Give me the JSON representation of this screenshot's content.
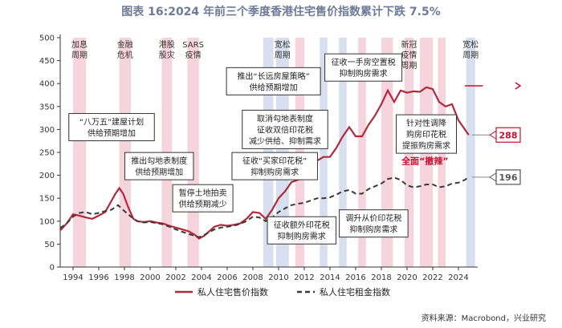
{
  "title": "图表 16:2024 年前三个季度香港住宅售价指数累计下跌 7.5%",
  "source": "资料来源：Macrobond，兴业研究",
  "chart_data": {
    "type": "line",
    "xlim": [
      1993,
      2025.5
    ],
    "ylim": [
      0,
      500
    ],
    "yticks": [
      0,
      50,
      100,
      150,
      200,
      250,
      300,
      350,
      400,
      450,
      500
    ],
    "xticks": [
      "1994",
      "1996",
      "1998",
      "2000",
      "2002",
      "2004",
      "2006",
      "2008",
      "2010",
      "2012",
      "2014",
      "2016",
      "2018",
      "2020",
      "2022",
      "2024"
    ],
    "grid": false,
    "legend_position": "bottom",
    "colors": {
      "price": "#b5283a",
      "rent": "#3a3a3a",
      "pink": "#f6d4dd",
      "blue": "#d8e0ef",
      "label_red": "#c8102e"
    },
    "series": [
      {
        "name": "私人住宅售价指数",
        "style": "solid",
        "points": [
          [
            1993.0,
            80
          ],
          [
            1993.5,
            95
          ],
          [
            1994.0,
            115
          ],
          [
            1994.5,
            112
          ],
          [
            1995.0,
            108
          ],
          [
            1995.5,
            105
          ],
          [
            1996.0,
            112
          ],
          [
            1996.5,
            120
          ],
          [
            1997.0,
            145
          ],
          [
            1997.3,
            160
          ],
          [
            1997.6,
            172
          ],
          [
            1997.9,
            160
          ],
          [
            1998.3,
            130
          ],
          [
            1998.7,
            105
          ],
          [
            1999.0,
            100
          ],
          [
            1999.5,
            98
          ],
          [
            2000.0,
            100
          ],
          [
            2000.5,
            97
          ],
          [
            2001.0,
            95
          ],
          [
            2001.5,
            90
          ],
          [
            2002.0,
            86
          ],
          [
            2002.5,
            82
          ],
          [
            2003.0,
            78
          ],
          [
            2003.5,
            70
          ],
          [
            2003.8,
            62
          ],
          [
            2004.2,
            68
          ],
          [
            2004.6,
            78
          ],
          [
            2005.0,
            88
          ],
          [
            2005.5,
            92
          ],
          [
            2006.0,
            90
          ],
          [
            2006.5,
            92
          ],
          [
            2007.0,
            95
          ],
          [
            2007.5,
            105
          ],
          [
            2008.0,
            120
          ],
          [
            2008.5,
            118
          ],
          [
            2009.0,
            105
          ],
          [
            2009.5,
            125
          ],
          [
            2010.0,
            150
          ],
          [
            2010.5,
            165
          ],
          [
            2011.0,
            185
          ],
          [
            2011.5,
            190
          ],
          [
            2012.0,
            198
          ],
          [
            2012.5,
            212
          ],
          [
            2013.0,
            232
          ],
          [
            2013.5,
            240
          ],
          [
            2014.0,
            240
          ],
          [
            2014.5,
            260
          ],
          [
            2015.0,
            285
          ],
          [
            2015.5,
            305
          ],
          [
            2016.0,
            285
          ],
          [
            2016.5,
            285
          ],
          [
            2017.0,
            310
          ],
          [
            2017.5,
            330
          ],
          [
            2018.0,
            355
          ],
          [
            2018.5,
            385
          ],
          [
            2019.0,
            360
          ],
          [
            2019.5,
            385
          ],
          [
            2020.0,
            380
          ],
          [
            2020.5,
            383
          ],
          [
            2021.0,
            382
          ],
          [
            2021.5,
            392
          ],
          [
            2022.0,
            388
          ],
          [
            2022.5,
            360
          ],
          [
            2023.0,
            350
          ],
          [
            2023.5,
            355
          ],
          [
            2024.0,
            320
          ],
          [
            2024.5,
            300
          ],
          [
            2024.8,
            288
          ]
        ]
      },
      {
        "name": "私人住宅租金指数",
        "style": "dashed",
        "points": [
          [
            1993.0,
            85
          ],
          [
            1993.5,
            95
          ],
          [
            1994.0,
            110
          ],
          [
            1994.5,
            118
          ],
          [
            1995.0,
            120
          ],
          [
            1995.5,
            115
          ],
          [
            1996.0,
            118
          ],
          [
            1996.5,
            122
          ],
          [
            1997.0,
            125
          ],
          [
            1997.5,
            135
          ],
          [
            1998.0,
            122
          ],
          [
            1998.5,
            110
          ],
          [
            1999.0,
            100
          ],
          [
            1999.5,
            97
          ],
          [
            2000.0,
            98
          ],
          [
            2000.5,
            96
          ],
          [
            2001.0,
            93
          ],
          [
            2001.5,
            88
          ],
          [
            2002.0,
            82
          ],
          [
            2002.5,
            77
          ],
          [
            2003.0,
            72
          ],
          [
            2003.5,
            68
          ],
          [
            2003.8,
            65
          ],
          [
            2004.2,
            70
          ],
          [
            2004.6,
            76
          ],
          [
            2005.0,
            82
          ],
          [
            2005.5,
            86
          ],
          [
            2006.0,
            88
          ],
          [
            2006.5,
            90
          ],
          [
            2007.0,
            94
          ],
          [
            2007.5,
            100
          ],
          [
            2008.0,
            110
          ],
          [
            2008.5,
            108
          ],
          [
            2009.0,
            100
          ],
          [
            2009.5,
            108
          ],
          [
            2010.0,
            120
          ],
          [
            2010.5,
            128
          ],
          [
            2011.0,
            135
          ],
          [
            2011.5,
            138
          ],
          [
            2012.0,
            140
          ],
          [
            2012.5,
            145
          ],
          [
            2013.0,
            150
          ],
          [
            2013.5,
            150
          ],
          [
            2014.0,
            152
          ],
          [
            2014.5,
            158
          ],
          [
            2015.0,
            165
          ],
          [
            2015.5,
            168
          ],
          [
            2016.0,
            160
          ],
          [
            2016.5,
            160
          ],
          [
            2017.0,
            170
          ],
          [
            2017.5,
            176
          ],
          [
            2018.0,
            182
          ],
          [
            2018.5,
            192
          ],
          [
            2019.0,
            195
          ],
          [
            2019.5,
            190
          ],
          [
            2020.0,
            178
          ],
          [
            2020.5,
            174
          ],
          [
            2021.0,
            176
          ],
          [
            2021.5,
            180
          ],
          [
            2022.0,
            180
          ],
          [
            2022.5,
            174
          ],
          [
            2023.0,
            176
          ],
          [
            2023.5,
            182
          ],
          [
            2024.0,
            184
          ],
          [
            2024.5,
            190
          ],
          [
            2024.8,
            196
          ]
        ]
      }
    ],
    "end_labels": [
      {
        "series": 0,
        "value": "288",
        "y": 288
      },
      {
        "series": 1,
        "value": "196",
        "y": 196
      }
    ],
    "periods": [
      {
        "label": [
          "加息",
          "周期"
        ],
        "color": "pink",
        "start": 1994.0,
        "end": 1995.0
      },
      {
        "label": [
          "金融",
          "危机"
        ],
        "color": "pink",
        "start": 1997.6,
        "end": 1998.5
      },
      {
        "label": [
          "港股",
          "股灾"
        ],
        "color": "pink",
        "start": 2000.9,
        "end": 2001.7
      },
      {
        "label": [
          "SARS",
          "疫情"
        ],
        "color": "pink",
        "start": 2002.9,
        "end": 2003.8
      },
      {
        "label": [],
        "color": "blue",
        "start": 2008.8,
        "end": 2009.6
      },
      {
        "label": [
          "宽松",
          "周期"
        ],
        "color": "blue",
        "start": 2009.8,
        "end": 2010.8
      },
      {
        "label": [],
        "color": "pink",
        "start": 2011.3,
        "end": 2012.0
      },
      {
        "label": [],
        "color": "blue",
        "start": 2013.2,
        "end": 2013.8
      },
      {
        "label": [],
        "color": "blue",
        "start": 2014.7,
        "end": 2015.3
      },
      {
        "label": [],
        "color": "pink",
        "start": 2016.2,
        "end": 2016.8
      },
      {
        "label": [],
        "color": "pink",
        "start": 2018.0,
        "end": 2018.9
      },
      {
        "label": [
          "新冠",
          "疫情",
          "周期"
        ],
        "color": "pink",
        "start": 2019.8,
        "end": 2020.5
      },
      {
        "label": [],
        "color": "pink",
        "start": 2021.0,
        "end": 2022.0
      },
      {
        "label": [],
        "color": "pink",
        "start": 2022.4,
        "end": 2023.0
      },
      {
        "label": [
          "宽松",
          "周期"
        ],
        "color": "blue",
        "start": 2024.6,
        "end": 2025.3
      }
    ],
    "annotations": [
      {
        "lines": [
          "“八万五”建屋计划",
          "供给预期增加"
        ],
        "x": 1997.0,
        "y": 305
      },
      {
        "lines": [
          "推出勾地表制度",
          "供给预期增加"
        ],
        "x": 2000.7,
        "y": 220
      },
      {
        "lines": [
          "暂停土地拍卖",
          "供给预期减少"
        ],
        "x": 2004.1,
        "y": 150
      },
      {
        "lines": [
          "推出“长远房屋策略”",
          "供给预期增加"
        ],
        "x": 2009.6,
        "y": 405
      },
      {
        "lines": [
          "取消勾地表制度",
          "征收双倍印花税",
          "减少供给、抑制需求"
        ],
        "x": 2010.5,
        "y": 300
      },
      {
        "lines": [
          "征收“买家印花税”",
          "抑制购房需求"
        ],
        "x": 2009.7,
        "y": 220
      },
      {
        "lines": [
          "征收额外印花税",
          "抑制购房需求"
        ],
        "x": 2011.8,
        "y": 80
      },
      {
        "lines": [
          "征收一手房空置税",
          "抑制购房需求"
        ],
        "x": 2016.6,
        "y": 435
      },
      {
        "lines": [
          "针对性调降",
          "购房印花税",
          "提振购房需求"
        ],
        "x": 2021.5,
        "y": 290
      },
      {
        "lines": [
          "调升从价印花税",
          "抑制购房需求"
        ],
        "x": 2017.4,
        "y": 95
      }
    ],
    "red_label": {
      "text": "全面“撤辣”",
      "x": 2021.4,
      "y": 225
    }
  }
}
